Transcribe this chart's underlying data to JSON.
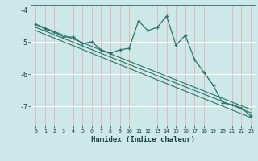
{
  "xlabel": "Humidex (Indice chaleur)",
  "bg_color": "#cce8e8",
  "grid_color_h": "#ffffff",
  "grid_color_v": "#e8b0b0",
  "line_color": "#2d7368",
  "main_data_x": [
    0,
    1,
    2,
    3,
    4,
    5,
    6,
    7,
    8,
    9,
    10,
    11,
    12,
    13,
    14,
    15,
    16,
    17,
    18,
    19,
    20,
    21,
    22,
    23
  ],
  "main_data_y": [
    -4.45,
    -4.6,
    -4.7,
    -4.85,
    -4.85,
    -5.05,
    -5.0,
    -5.25,
    -5.35,
    -5.25,
    -5.2,
    -4.35,
    -4.65,
    -4.55,
    -4.2,
    -5.1,
    -4.8,
    -5.55,
    -5.95,
    -6.35,
    -6.9,
    -6.95,
    -7.05,
    -7.3
  ],
  "trend1_x": [
    0,
    23
  ],
  "trend1_y": [
    -4.45,
    -7.1
  ],
  "trend2_x": [
    0,
    23
  ],
  "trend2_y": [
    -4.55,
    -7.2
  ],
  "trend3_x": [
    0,
    23
  ],
  "trend3_y": [
    -4.65,
    -7.35
  ],
  "xlim": [
    -0.5,
    23.5
  ],
  "ylim": [
    -7.6,
    -3.85
  ],
  "yticks": [
    -7,
    -6,
    -5,
    -4
  ],
  "xticks": [
    0,
    1,
    2,
    3,
    4,
    5,
    6,
    7,
    8,
    9,
    10,
    11,
    12,
    13,
    14,
    15,
    16,
    17,
    18,
    19,
    20,
    21,
    22,
    23
  ]
}
